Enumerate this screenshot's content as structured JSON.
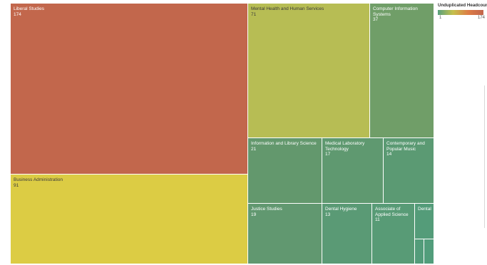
{
  "chart_data": {
    "type": "treemap",
    "legend": {
      "title": "Unduplicated Headcount",
      "min_label": "1",
      "max_label": "174",
      "color_stops": [
        "#57a07d",
        "#c5c04c",
        "#dd7d45",
        "#c2654c"
      ]
    },
    "items": [
      {
        "name": "Liberal Studies",
        "value": 174,
        "color": "#c2674c"
      },
      {
        "name": "Business Administration",
        "value": 91,
        "color": "#dccc44"
      },
      {
        "name": "Mental Health and Human Services",
        "value": 71,
        "color": "#b7bd54"
      },
      {
        "name": "Computer Information Systems",
        "value": 37,
        "color": "#709e68"
      },
      {
        "name": "Information and Library Science",
        "value": 21,
        "color": "#63986d"
      },
      {
        "name": "Medical Laboratory Technology",
        "value": 17,
        "color": "#5f9970"
      },
      {
        "name": "Contemporary and Popular Music",
        "value": 14,
        "color": "#5b9a73"
      },
      {
        "name": "Justice Studies",
        "value": 19,
        "color": "#619870"
      },
      {
        "name": "Dental Hygiene",
        "value": 13,
        "color": "#5a9a75"
      },
      {
        "name": "Associate of Applied Science",
        "value": 11,
        "color": "#589b76"
      },
      {
        "name": "Dental",
        "value": null,
        "color": "#549c79"
      },
      {
        "name": "",
        "value": null,
        "color": "#539c7a"
      },
      {
        "name": "",
        "value": null,
        "color": "#529d7b"
      }
    ]
  }
}
